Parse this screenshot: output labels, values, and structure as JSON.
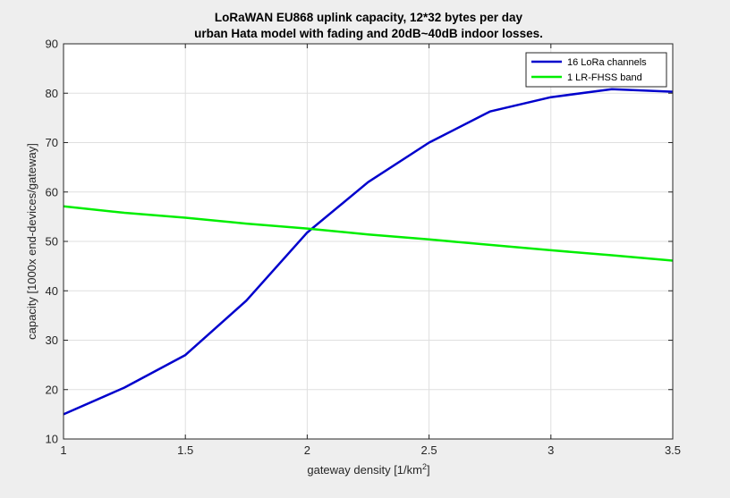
{
  "chart_data": {
    "type": "line",
    "title": "LoRaWAN EU868 uplink capacity, 12*32 bytes per day",
    "subtitle": "urban Hata model with fading and 20dB~40dB indoor losses.",
    "xlabel": "gateway density [1/km",
    "xlabel_sup": "2",
    "xlabel_end": "]",
    "ylabel": "capacity [1000x end-devices/gateway]",
    "xlim": [
      1,
      3.5
    ],
    "ylim": [
      10,
      90
    ],
    "xticks": [
      1,
      1.5,
      2,
      2.5,
      3,
      3.5
    ],
    "xtick_labels": [
      "1",
      "1.5",
      "2",
      "2.5",
      "3",
      "3.5"
    ],
    "yticks": [
      10,
      20,
      30,
      40,
      50,
      60,
      70,
      80,
      90
    ],
    "ytick_labels": [
      "10",
      "20",
      "30",
      "40",
      "50",
      "60",
      "70",
      "80",
      "90"
    ],
    "grid": true,
    "legend_position": "top-right",
    "series": [
      {
        "name": "16 LoRa channels",
        "color": "#0000cc",
        "x": [
          1,
          1.25,
          1.5,
          1.75,
          2,
          2.25,
          2.5,
          2.75,
          3,
          3.25,
          3.5
        ],
        "y": [
          15,
          20.4,
          27,
          38,
          51.8,
          62,
          70,
          76.3,
          79.2,
          80.8,
          80.3
        ]
      },
      {
        "name": "1 LR-FHSS band",
        "color": "#00ee00",
        "x": [
          1,
          1.25,
          1.5,
          1.75,
          2,
          2.25,
          2.5,
          2.75,
          3,
          3.25,
          3.5
        ],
        "y": [
          57.1,
          55.8,
          54.8,
          53.6,
          52.6,
          51.4,
          50.4,
          49.3,
          48.2,
          47.2,
          46.1
        ]
      }
    ]
  }
}
